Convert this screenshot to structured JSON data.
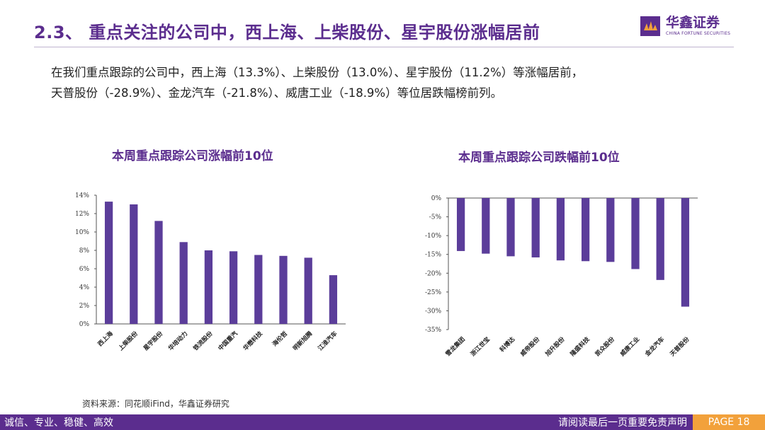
{
  "header": {
    "title": "2.3、 重点关注的公司中，西上海、上柴股份、星宇股份涨幅居前",
    "logo_cn": "华鑫证券",
    "logo_en": "CHINA FORTUNE SECURITIES"
  },
  "intro": {
    "line1": "在我们重点跟踪的公司中，西上海（13.3%）、上柴股份（13.0%）、星宇股份（11.2%）等涨幅居前，",
    "line2": "天普股份（-28.9%）、金龙汽车（-21.8%）、威唐工业（-18.9%）等位居跌幅榜前列。"
  },
  "chart_data": [
    {
      "type": "bar",
      "title": "本周重点跟踪公司涨幅前10位",
      "categories": [
        "西上海",
        "上柴股份",
        "星宇股份",
        "华培动力",
        "铁流股份",
        "中国重汽",
        "华懋科技",
        "海伦哲",
        "明新旭腾",
        "江淮汽车"
      ],
      "values": [
        13.3,
        13.0,
        11.2,
        8.9,
        8.0,
        7.9,
        7.5,
        7.4,
        7.2,
        5.3
      ],
      "ylim": [
        0,
        14
      ],
      "yticks": [
        "0%",
        "2%",
        "4%",
        "6%",
        "8%",
        "10%",
        "12%",
        "14%"
      ],
      "xlabel": "",
      "ylabel": "",
      "color": "#5b3d9a"
    },
    {
      "type": "bar",
      "title": "本周重点跟踪公司跌幅前10位",
      "categories": [
        "雪龙集团",
        "浙江世宝",
        "科博达",
        "威帝股份",
        "旭升股份",
        "隆盛科技",
        "凯众股份",
        "威唐工业",
        "金龙汽车",
        "天普股份"
      ],
      "values": [
        -14.1,
        -14.8,
        -15.5,
        -15.8,
        -16.6,
        -16.8,
        -17.0,
        -18.9,
        -21.8,
        -28.9
      ],
      "ylim": [
        -35,
        0
      ],
      "yticks": [
        "0%",
        "-5%",
        "-10%",
        "-15%",
        "-20%",
        "-25%",
        "-30%",
        "-35%"
      ],
      "xlabel": "",
      "ylabel": "",
      "color": "#5b3d9a"
    }
  ],
  "source": "资料来源：同花顺iFind，华鑫证券研究",
  "footer": {
    "left": "诚信、专业、稳健、高效",
    "right": "请阅读最后一页重要免责声明",
    "page": "PAGE 18"
  }
}
